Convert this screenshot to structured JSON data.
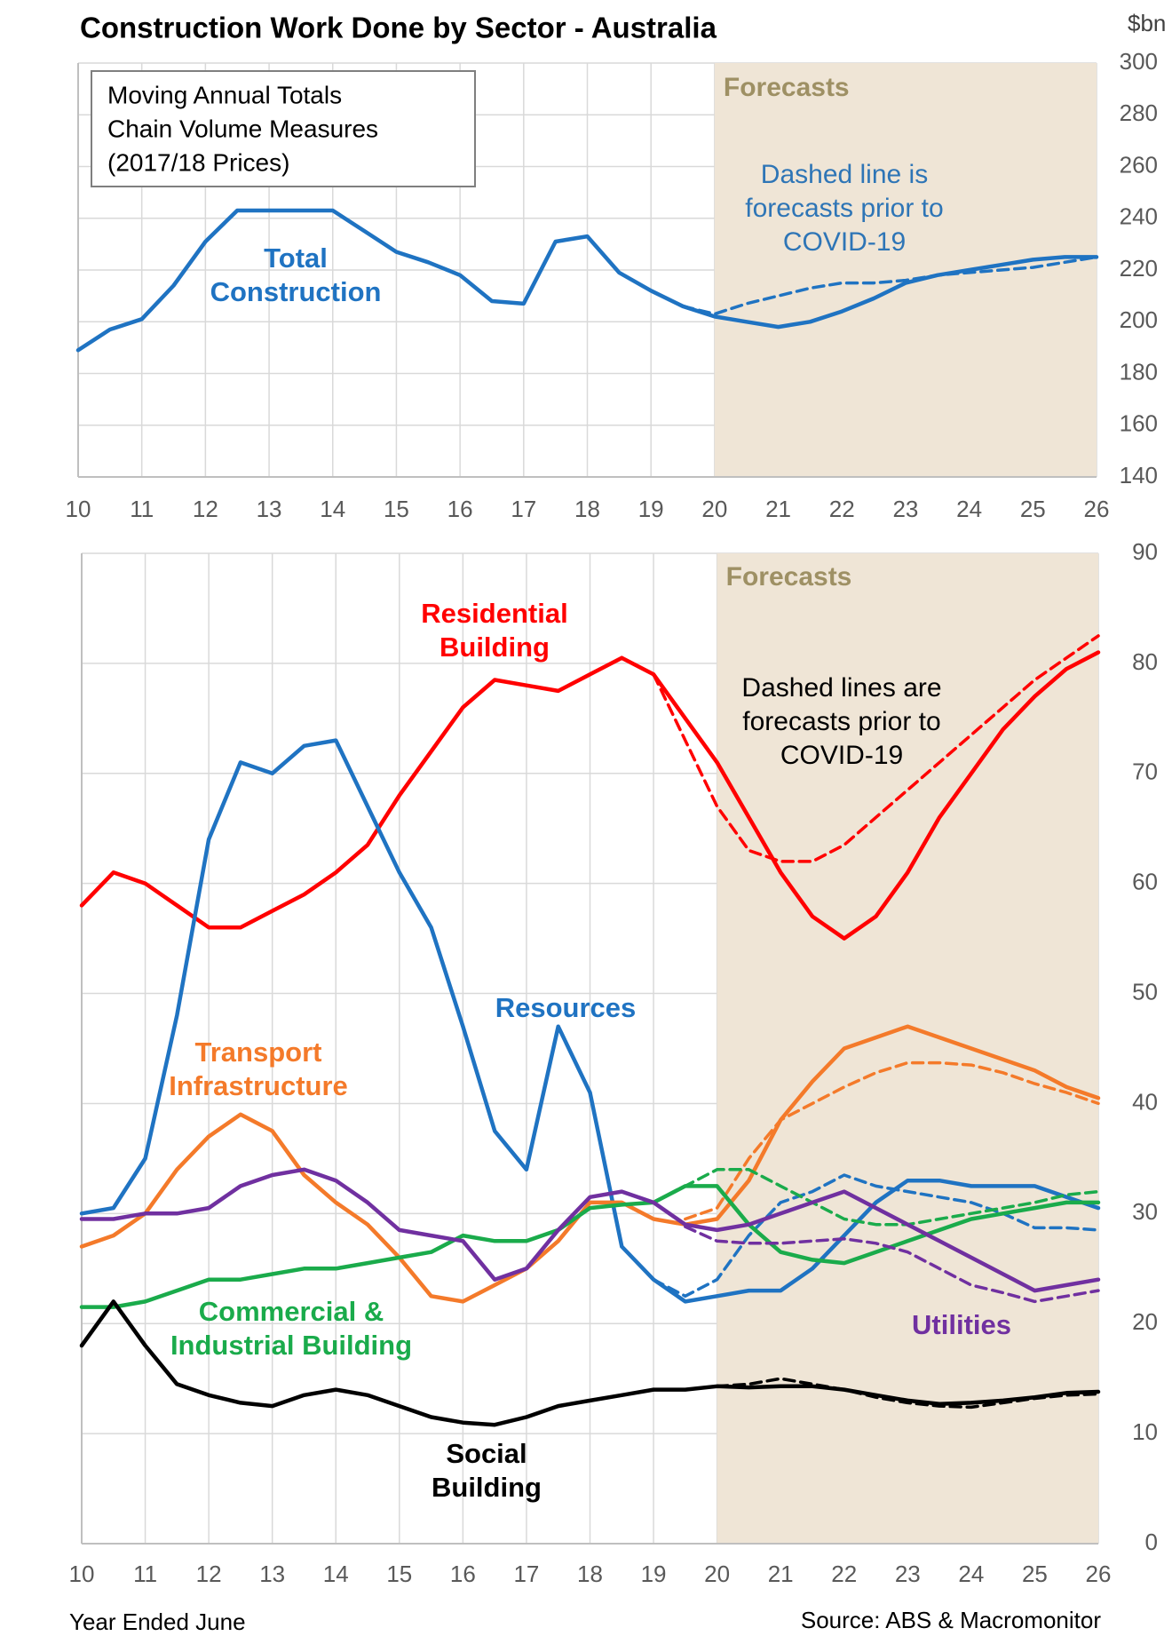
{
  "title": "Construction Work Done by Sector - Australia",
  "y_unit": "$bn",
  "x_axis_label": "Year Ended June",
  "source": "Source: ABS & Macromonitor",
  "chart_data": [
    {
      "type": "line",
      "note_lines": [
        "Moving Annual Totals",
        "Chain Volume Measures",
        "(2017/18 Prices)"
      ],
      "shade": {
        "label": "Forecasts",
        "from": 20,
        "to": 26,
        "color": "#efe5d6"
      },
      "annotations": [
        "Dashed line is forecasts prior to COVID-19"
      ],
      "xlim": [
        10,
        26
      ],
      "xticks": [
        10,
        11,
        12,
        13,
        14,
        15,
        16,
        17,
        18,
        19,
        20,
        21,
        22,
        23,
        24,
        25,
        26
      ],
      "ylim": [
        140,
        300
      ],
      "yticks": [
        140,
        160,
        180,
        200,
        220,
        240,
        260,
        280,
        300
      ],
      "grid": true,
      "x": [
        10,
        10.5,
        11,
        11.5,
        12,
        12.5,
        13,
        13.5,
        14,
        14.5,
        15,
        15.5,
        16,
        16.5,
        17,
        17.5,
        18,
        18.5,
        19,
        19.5,
        20,
        20.5,
        21,
        21.5,
        22,
        22.5,
        23,
        23.5,
        24,
        24.5,
        25,
        25.5,
        26
      ],
      "series": [
        {
          "name": "Total Construction",
          "color": "#1f73c2",
          "values": [
            189,
            197,
            201,
            214,
            231,
            243,
            243,
            243,
            243,
            235,
            227,
            223,
            218,
            208,
            207,
            231,
            233,
            219,
            212,
            206,
            202,
            200,
            198,
            200,
            204,
            209,
            215,
            218,
            220,
            222,
            224,
            225,
            225
          ]
        },
        {
          "color": "#1f73c2",
          "dashed": true,
          "values": [
            null,
            null,
            null,
            null,
            null,
            null,
            null,
            null,
            null,
            null,
            null,
            null,
            null,
            null,
            null,
            null,
            null,
            null,
            null,
            206,
            203,
            207,
            210,
            213,
            215,
            215,
            216,
            218,
            219,
            220,
            221,
            223,
            225
          ]
        }
      ]
    },
    {
      "type": "line",
      "shade": {
        "label": "Forecasts",
        "from": 20,
        "to": 26,
        "color": "#efe5d6"
      },
      "annotations": [
        "Dashed lines are forecasts prior to COVID-19"
      ],
      "xlim": [
        10,
        26
      ],
      "xticks": [
        10,
        11,
        12,
        13,
        14,
        15,
        16,
        17,
        18,
        19,
        20,
        21,
        22,
        23,
        24,
        25,
        26
      ],
      "ylim": [
        0,
        90
      ],
      "yticks": [
        0,
        10,
        20,
        30,
        40,
        50,
        60,
        70,
        80,
        90
      ],
      "grid": true,
      "x": [
        10,
        10.5,
        11,
        11.5,
        12,
        12.5,
        13,
        13.5,
        14,
        14.5,
        15,
        15.5,
        16,
        16.5,
        17,
        17.5,
        18,
        18.5,
        19,
        19.5,
        20,
        20.5,
        21,
        21.5,
        22,
        22.5,
        23,
        23.5,
        24,
        24.5,
        25,
        25.5,
        26
      ],
      "series": [
        {
          "name": "Residential Building",
          "color": "#ff0000",
          "values": [
            58,
            61,
            60,
            58,
            56,
            56,
            57.5,
            59,
            61,
            63.5,
            68,
            72,
            76,
            78.5,
            78,
            77.5,
            79,
            80.5,
            79,
            75,
            71,
            66,
            61,
            57,
            55,
            57,
            61,
            66,
            70,
            74,
            77,
            79.5,
            81
          ]
        },
        {
          "color": "#ff0000",
          "dashed": true,
          "values": [
            null,
            null,
            null,
            null,
            null,
            null,
            null,
            null,
            null,
            null,
            null,
            null,
            null,
            null,
            null,
            null,
            null,
            null,
            79,
            73,
            67,
            63,
            62,
            62,
            63.5,
            66,
            68.5,
            71,
            73.5,
            76,
            78.5,
            80.5,
            82.5
          ]
        },
        {
          "name": "Resources",
          "color": "#1f73c2",
          "values": [
            30,
            30.5,
            35,
            48,
            64,
            71,
            70,
            72.5,
            73,
            67,
            61,
            56,
            47,
            37.5,
            34,
            47,
            41,
            27,
            24,
            22,
            22.5,
            23,
            23,
            25,
            28,
            31,
            33,
            33,
            32.5,
            32.5,
            32.5,
            31.5,
            30.5
          ]
        },
        {
          "color": "#1f73c2",
          "dashed": true,
          "values": [
            null,
            null,
            null,
            null,
            null,
            null,
            null,
            null,
            null,
            null,
            null,
            null,
            null,
            null,
            null,
            null,
            null,
            null,
            24,
            22.5,
            24,
            28,
            31,
            32,
            33.5,
            32.5,
            32,
            31.5,
            31,
            30,
            28.7,
            28.7,
            28.5
          ]
        },
        {
          "name": "Transport Infrastructure",
          "color": "#f47a2a",
          "values": [
            27,
            28,
            30,
            34,
            37,
            39,
            37.5,
            33.5,
            31,
            29,
            26,
            22.5,
            22,
            23.5,
            25,
            27.5,
            31,
            31,
            29.5,
            29,
            29.5,
            33,
            38.5,
            42,
            45,
            46,
            47,
            46,
            45,
            44,
            43,
            41.5,
            40.5
          ]
        },
        {
          "color": "#f47a2a",
          "dashed": true,
          "values": [
            null,
            null,
            null,
            null,
            null,
            null,
            null,
            null,
            null,
            null,
            null,
            null,
            null,
            null,
            null,
            null,
            null,
            null,
            null,
            29.5,
            30.5,
            35,
            38.5,
            40,
            41.5,
            42.8,
            43.7,
            43.7,
            43.5,
            42.8,
            41.8,
            41,
            40
          ]
        },
        {
          "name": "Commercial & Industrial Building",
          "color": "#1aab4b",
          "values": [
            21.5,
            21.5,
            22,
            23,
            24,
            24,
            24.5,
            25,
            25,
            25.5,
            26,
            26.5,
            28,
            27.5,
            27.5,
            28.5,
            30.5,
            30.8,
            31,
            32.5,
            32.5,
            29,
            26.5,
            25.8,
            25.5,
            26.5,
            27.5,
            28.5,
            29.5,
            30,
            30.5,
            31,
            31
          ]
        },
        {
          "color": "#1aab4b",
          "dashed": true,
          "values": [
            null,
            null,
            null,
            null,
            null,
            null,
            null,
            null,
            null,
            null,
            null,
            null,
            null,
            null,
            null,
            null,
            null,
            null,
            31,
            32.5,
            34,
            34,
            32.5,
            31,
            29.5,
            29,
            29,
            29.5,
            30,
            30.5,
            31,
            31.7,
            32
          ]
        },
        {
          "name": "Utilities",
          "color": "#7030a0",
          "values": [
            29.5,
            29.5,
            30,
            30,
            30.5,
            32.5,
            33.5,
            34,
            33,
            31,
            28.5,
            28,
            27.5,
            24,
            25,
            28.5,
            31.5,
            32,
            31,
            29,
            28.5,
            29,
            30,
            31,
            32,
            30.5,
            29,
            27.5,
            26,
            24.5,
            23,
            23.5,
            24
          ]
        },
        {
          "color": "#7030a0",
          "dashed": true,
          "values": [
            null,
            null,
            null,
            null,
            null,
            null,
            null,
            null,
            null,
            null,
            null,
            null,
            null,
            null,
            null,
            null,
            null,
            null,
            null,
            28.8,
            27.5,
            27.3,
            27.3,
            27.5,
            27.7,
            27.3,
            26.5,
            25,
            23.5,
            22.8,
            22,
            22.5,
            23
          ]
        },
        {
          "name": "Social Building",
          "color": "#000000",
          "values": [
            18,
            22,
            18,
            14.5,
            13.5,
            12.8,
            12.5,
            13.5,
            14,
            13.5,
            12.5,
            11.5,
            11,
            10.8,
            11.5,
            12.5,
            13,
            13.5,
            14,
            14,
            14.3,
            14.2,
            14.3,
            14.3,
            14,
            13.5,
            13,
            12.7,
            12.8,
            13,
            13.3,
            13.7,
            13.8
          ]
        },
        {
          "color": "#000000",
          "dashed": true,
          "values": [
            null,
            null,
            null,
            null,
            null,
            null,
            null,
            null,
            null,
            null,
            null,
            null,
            null,
            null,
            null,
            null,
            null,
            null,
            null,
            null,
            14.3,
            14.5,
            15,
            14.5,
            14,
            13.3,
            12.8,
            12.5,
            12.4,
            12.8,
            13.2,
            13.5,
            13.6
          ]
        }
      ]
    }
  ]
}
